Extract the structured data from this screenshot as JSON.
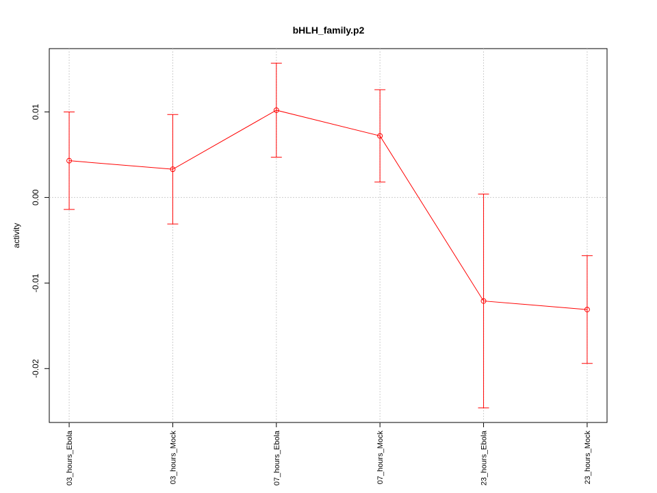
{
  "chart_data": {
    "type": "line",
    "title": "bHLH_family.p2",
    "y_label": "activity",
    "categories": [
      "03_hours_Ebola",
      "03_hours_Mock",
      "07_hours_Ebola",
      "07_hours_Mock",
      "23_hours_Ebola",
      "23_hours_Mock"
    ],
    "series": [
      {
        "color": "#ff0000",
        "values": [
          0.0043,
          0.0033,
          0.0102,
          0.0072,
          -0.0121,
          -0.0131
        ],
        "errors": [
          0.0057,
          0.0064,
          0.0055,
          0.0054,
          0.0125,
          0.0063
        ]
      }
    ],
    "ylim": [
      -0.0263,
      0.0174
    ],
    "yticks": [
      -0.02,
      -0.01,
      {
        "value": 0,
        "label": "0.00"
      },
      0.01
    ],
    "reference_line": 0,
    "grid": true
  }
}
